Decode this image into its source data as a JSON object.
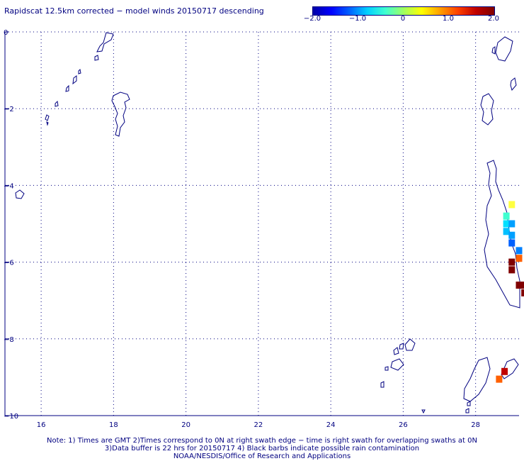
{
  "title": "Rapidscat 12.5km corrected − model winds 20150717 descending",
  "colorbar": {
    "stops": [
      "#0000a8",
      "#0000ff",
      "#0060ff",
      "#00d0ff",
      "#40ffd0",
      "#a0ff60",
      "#ffff00",
      "#ffa000",
      "#ff4000",
      "#c00000",
      "#800000"
    ],
    "ticks": [
      "−2.0",
      "−1.0",
      "0",
      "1.0",
      "2.0"
    ]
  },
  "map": {
    "lon_range": [
      15,
      29.2
    ],
    "lat_range": [
      -10,
      0
    ],
    "x_ticks": [
      "16",
      "18",
      "20",
      "22",
      "24",
      "26",
      "28"
    ],
    "y_ticks": [
      "0",
      "−2",
      "−4",
      "−6",
      "−8",
      "−10"
    ],
    "grid": true,
    "colors": {
      "coast": "#000080",
      "grid": "#000080",
      "frame": "#000080"
    }
  },
  "wind_cells": [
    {
      "lon": 29.0,
      "lat": -4.5,
      "color": "#ffff40"
    },
    {
      "lon": 28.85,
      "lat": -4.8,
      "color": "#40ffd0"
    },
    {
      "lon": 28.85,
      "lat": -5.0,
      "color": "#00e0ff"
    },
    {
      "lon": 29.0,
      "lat": -5.0,
      "color": "#00a0ff"
    },
    {
      "lon": 28.85,
      "lat": -5.2,
      "color": "#00c0ff"
    },
    {
      "lon": 29.0,
      "lat": -5.3,
      "color": "#00a0ff"
    },
    {
      "lon": 29.0,
      "lat": -5.5,
      "color": "#0060ff"
    },
    {
      "lon": 29.2,
      "lat": -5.7,
      "color": "#0080ff"
    },
    {
      "lon": 29.2,
      "lat": -5.9,
      "color": "#ff6000"
    },
    {
      "lon": 29.0,
      "lat": -6.0,
      "color": "#800000"
    },
    {
      "lon": 29.0,
      "lat": -6.2,
      "color": "#800000"
    },
    {
      "lon": 29.2,
      "lat": -6.6,
      "color": "#800000"
    },
    {
      "lon": 29.35,
      "lat": -6.8,
      "color": "#800000"
    },
    {
      "lon": 29.35,
      "lat": -6.6,
      "color": "#800000"
    },
    {
      "lon": 28.8,
      "lat": -8.85,
      "color": "#c00000"
    },
    {
      "lon": 28.65,
      "lat": -9.05,
      "color": "#ff6000"
    }
  ],
  "notes": [
    "Note: 1) Times are GMT 2)Times correspond to 0N at right swath edge − time is right swath for overlapping swaths at 0N",
    "3)Data buffer is 22 hrs for 20150717 4) Black barbs indicate possible rain contamination",
    "NOAA/NESDIS/Office of Research and Applications"
  ]
}
